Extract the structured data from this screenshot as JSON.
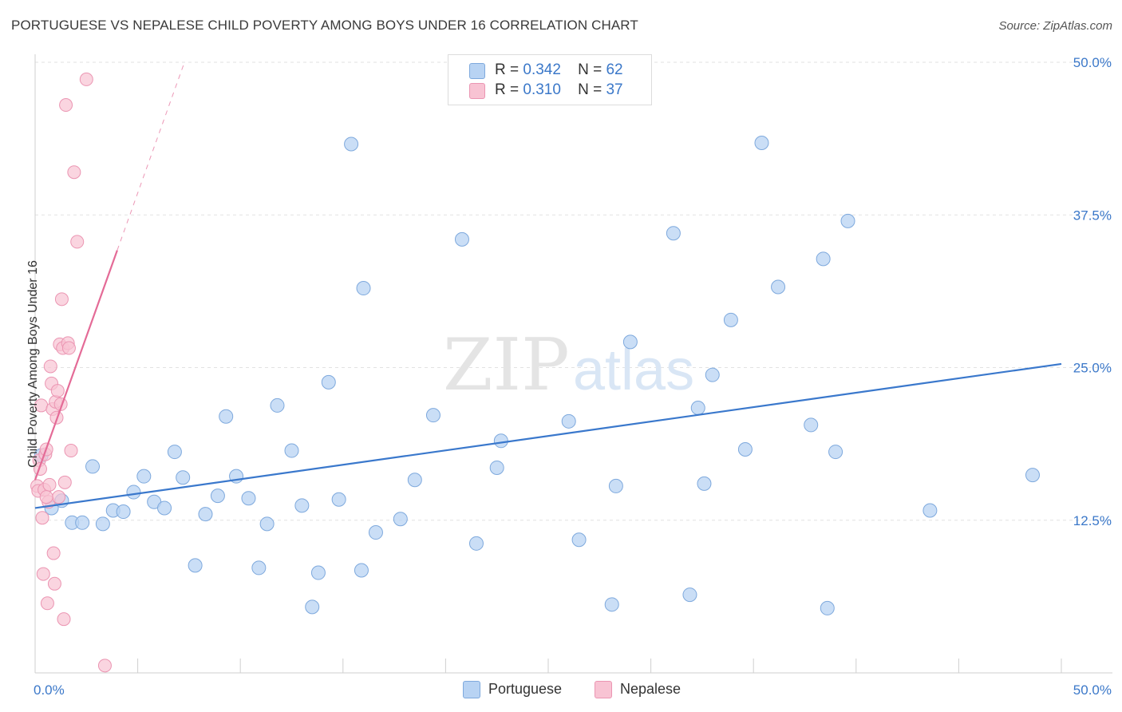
{
  "header": {
    "title": "PORTUGUESE VS NEPALESE CHILD POVERTY AMONG BOYS UNDER 16 CORRELATION CHART",
    "source": "Source: ZipAtlas.com"
  },
  "watermark": {
    "zip": "ZIP",
    "atlas": "atlas"
  },
  "legend": {
    "rows": [
      {
        "r_label": "R =",
        "r_value": "0.342",
        "n_label": "N =",
        "n_value": "62"
      },
      {
        "r_label": "R =",
        "r_value": "0.310",
        "n_label": "N =",
        "n_value": "37"
      }
    ]
  },
  "colors": {
    "portuguese_fill": "#b8d3f3",
    "portuguese_stroke": "#7ea9dd",
    "portuguese_line": "#3a78cc",
    "nepalese_fill": "#f8c3d3",
    "nepalese_stroke": "#eb95b2",
    "nepalese_line": "#e46b97",
    "tick_label": "#3b78c9",
    "grid": "#e2e2e2"
  },
  "chart_data": {
    "type": "scatter",
    "title": "PORTUGUESE VS NEPALESE CHILD POVERTY AMONG BOYS UNDER 16 CORRELATION CHART",
    "xlabel": "",
    "ylabel": "Child Poverty Among Boys Under 16",
    "xlim": [
      0,
      50
    ],
    "ylim": [
      0,
      50
    ],
    "x_tick_labels": [
      "0.0%",
      "50.0%"
    ],
    "y_ticks": [
      12.5,
      25.0,
      37.5,
      50.0
    ],
    "y_tick_labels": [
      "12.5%",
      "25.0%",
      "37.5%",
      "50.0%"
    ],
    "grid": true,
    "legend_position": "top-center",
    "series": [
      {
        "name": "Portuguese",
        "R": 0.342,
        "N": 62,
        "trend": {
          "x": [
            0,
            50
          ],
          "y": [
            13.5,
            25.3
          ]
        },
        "points": [
          [
            0.3,
            17.8
          ],
          [
            0.8,
            13.5
          ],
          [
            1.3,
            14.1
          ],
          [
            1.8,
            12.3
          ],
          [
            2.3,
            12.3
          ],
          [
            2.8,
            16.9
          ],
          [
            3.3,
            12.2
          ],
          [
            3.8,
            13.3
          ],
          [
            4.3,
            13.2
          ],
          [
            4.8,
            14.8
          ],
          [
            5.3,
            16.1
          ],
          [
            5.8,
            14.0
          ],
          [
            6.3,
            13.5
          ],
          [
            6.8,
            18.1
          ],
          [
            7.2,
            16.0
          ],
          [
            7.8,
            8.8
          ],
          [
            8.3,
            13.0
          ],
          [
            8.9,
            14.5
          ],
          [
            9.3,
            21.0
          ],
          [
            9.8,
            16.1
          ],
          [
            10.4,
            14.3
          ],
          [
            10.9,
            8.6
          ],
          [
            11.3,
            12.2
          ],
          [
            11.8,
            21.9
          ],
          [
            12.5,
            18.2
          ],
          [
            13.0,
            13.7
          ],
          [
            13.5,
            5.4
          ],
          [
            13.8,
            8.2
          ],
          [
            14.3,
            23.8
          ],
          [
            14.8,
            14.2
          ],
          [
            15.4,
            43.3
          ],
          [
            15.9,
            8.4
          ],
          [
            16.0,
            31.5
          ],
          [
            16.6,
            11.5
          ],
          [
            17.8,
            12.6
          ],
          [
            18.5,
            15.8
          ],
          [
            19.4,
            21.1
          ],
          [
            20.8,
            35.5
          ],
          [
            21.5,
            10.6
          ],
          [
            22.5,
            16.8
          ],
          [
            22.7,
            19.0
          ],
          [
            26.0,
            20.6
          ],
          [
            26.5,
            10.9
          ],
          [
            28.1,
            5.6
          ],
          [
            28.3,
            15.3
          ],
          [
            29.0,
            27.1
          ],
          [
            31.1,
            36.0
          ],
          [
            31.9,
            6.4
          ],
          [
            32.3,
            21.7
          ],
          [
            32.6,
            15.5
          ],
          [
            33.0,
            24.4
          ],
          [
            33.9,
            28.9
          ],
          [
            34.6,
            18.3
          ],
          [
            35.4,
            43.4
          ],
          [
            36.2,
            31.6
          ],
          [
            37.8,
            20.3
          ],
          [
            38.4,
            33.9
          ],
          [
            38.6,
            5.3
          ],
          [
            39.0,
            18.1
          ],
          [
            39.6,
            37.0
          ],
          [
            43.6,
            13.3
          ],
          [
            48.6,
            16.2
          ]
        ]
      },
      {
        "name": "Nepalese",
        "R": 0.31,
        "N": 37,
        "trend": {
          "x": [
            0,
            4.0
          ],
          "y": [
            15.8,
            34.6
          ]
        },
        "points": [
          [
            0.1,
            15.3
          ],
          [
            0.15,
            14.9
          ],
          [
            0.2,
            17.4
          ],
          [
            0.3,
            21.9
          ],
          [
            0.35,
            12.7
          ],
          [
            0.4,
            8.1
          ],
          [
            0.45,
            15.0
          ],
          [
            0.5,
            17.9
          ],
          [
            0.55,
            18.3
          ],
          [
            0.6,
            5.7
          ],
          [
            0.65,
            14.0
          ],
          [
            0.7,
            15.4
          ],
          [
            0.75,
            25.1
          ],
          [
            0.8,
            23.7
          ],
          [
            0.85,
            21.6
          ],
          [
            0.9,
            9.8
          ],
          [
            0.95,
            7.3
          ],
          [
            1.0,
            22.2
          ],
          [
            1.05,
            20.9
          ],
          [
            1.1,
            23.1
          ],
          [
            1.15,
            14.4
          ],
          [
            1.2,
            26.9
          ],
          [
            1.3,
            30.6
          ],
          [
            1.35,
            26.6
          ],
          [
            1.4,
            4.4
          ],
          [
            1.45,
            15.6
          ],
          [
            1.5,
            46.5
          ],
          [
            1.6,
            27.0
          ],
          [
            1.65,
            26.6
          ],
          [
            1.75,
            18.2
          ],
          [
            1.9,
            41.0
          ],
          [
            2.05,
            35.3
          ],
          [
            2.5,
            48.6
          ],
          [
            3.4,
            0.6
          ],
          [
            0.25,
            16.7
          ],
          [
            0.55,
            14.4
          ],
          [
            1.25,
            22.0
          ]
        ]
      }
    ]
  },
  "bottom_legend": {
    "items": [
      "Portuguese",
      "Nepalese"
    ]
  }
}
